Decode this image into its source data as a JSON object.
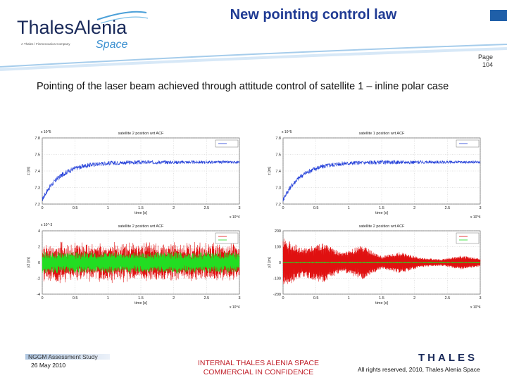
{
  "header": {
    "logo_line1": "ThalesAlenia",
    "logo_line2": "Space",
    "logo_tagline": "A Thales / Finmeccanica Company",
    "title": "New pointing control law",
    "page_label": "Page",
    "page_number": "104"
  },
  "subtitle": "Pointing of the laser beam achieved through attitude control of satellite 1 – inline polar case",
  "footer": {
    "study": "NGGM Assessment Study",
    "date": "26 May 2010",
    "internal_line1": "INTERNAL THALES ALENIA SPACE",
    "internal_line2": "COMMERCIAL IN CONFIDENCE",
    "thales_logo": "THALES",
    "rights": "All rights reserved, 2010, Thales Alenia Space"
  },
  "colors": {
    "title": "#1f3a93",
    "internal": "#c0202a",
    "series_blue": "#1f3cd8",
    "series_red": "#e01010",
    "series_green": "#22dd22"
  },
  "chart_data": [
    {
      "type": "line",
      "title": "satellite 2 position wrt ACF",
      "xlabel": "time [s]",
      "ylabel": "z [m]",
      "x_exponent": "x 10^4",
      "y_exponent": "x 10^5",
      "x_ticks": [
        "0",
        "0.5",
        "1",
        "1.5",
        "2",
        "2.5",
        "3"
      ],
      "y_ticks": [
        "7.8",
        "7.5",
        "7.4",
        "7.3",
        "7.2"
      ],
      "xlim": [
        0,
        3
      ],
      "ylim": [
        7.2,
        7.8
      ],
      "grid": true,
      "legend": "top-right",
      "series": [
        {
          "color": "#1f3cd8",
          "y_start": 7.24,
          "y_end": 7.58,
          "noise": 0.012
        }
      ]
    },
    {
      "type": "line",
      "title": "satellite 1 position wrt ACF",
      "xlabel": "time [s]",
      "ylabel": "z [m]",
      "x_exponent": "x 10^4",
      "y_exponent": "x 10^5",
      "x_ticks": [
        "0",
        "0.5",
        "1",
        "1.5",
        "2",
        "2.5",
        "3"
      ],
      "y_ticks": [
        "7.8",
        "7.5",
        "7.4",
        "7.3",
        "7.2"
      ],
      "xlim": [
        0,
        3
      ],
      "ylim": [
        7.2,
        7.8
      ],
      "grid": true,
      "legend": "top-right",
      "series": [
        {
          "color": "#1f3cd8",
          "y_start": 7.24,
          "y_end": 7.58,
          "noise": 0.012
        }
      ]
    },
    {
      "type": "line",
      "title": "satellite 2 position wrt ACF",
      "xlabel": "time [s]",
      "ylabel": "y2 [m]",
      "x_exponent": "x 10^4",
      "y_exponent": "x 10^-3",
      "x_ticks": [
        "0",
        "0.5",
        "1",
        "1.5",
        "2",
        "2.5",
        "3"
      ],
      "y_ticks": [
        "4",
        "2",
        "0",
        "-2",
        "-4"
      ],
      "xlim": [
        0,
        3
      ],
      "ylim": [
        -4,
        4
      ],
      "grid": true,
      "legend": "top-right",
      "series": [
        {
          "color": "#e01010",
          "amplitude": 2.2,
          "noise": 1.0
        },
        {
          "color": "#22dd22",
          "amplitude": 1.3,
          "noise": 0.3
        }
      ]
    },
    {
      "type": "line",
      "title": "satellite 2 position wrt ACF",
      "xlabel": "time [s]",
      "ylabel": "y2 [m]",
      "x_exponent": "x 10^4",
      "y_exponent": "",
      "x_ticks": [
        "0",
        "0.5",
        "1",
        "1.5",
        "2",
        "2.5",
        "3"
      ],
      "y_ticks": [
        "200",
        "100",
        "0",
        "-100",
        "-200"
      ],
      "xlim": [
        0,
        3
      ],
      "ylim": [
        -200,
        200
      ],
      "grid": true,
      "legend": "top-right",
      "series": [
        {
          "color": "#e01010",
          "amplitude": 170,
          "envelope": [
            160,
            90,
            130,
            60,
            110,
            40,
            70,
            30,
            20,
            45,
            25
          ]
        },
        {
          "color": "#22dd22",
          "amplitude": 2,
          "noise": 1
        }
      ]
    }
  ]
}
